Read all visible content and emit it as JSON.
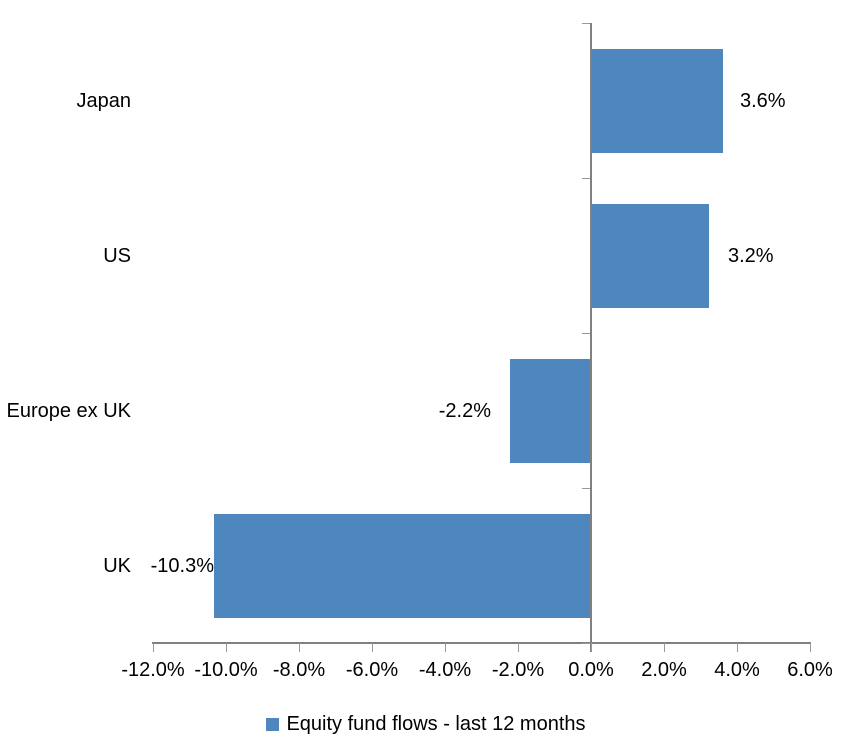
{
  "chart_data": {
    "type": "bar",
    "orientation": "horizontal",
    "title": "",
    "xlabel": "",
    "ylabel": "",
    "categories": [
      "Japan",
      "US",
      "Europe ex UK",
      "UK"
    ],
    "series": [
      {
        "name": "Equity fund flows - last 12 months",
        "values": [
          3.6,
          3.2,
          -2.2,
          -10.3
        ],
        "labels": [
          "3.6%",
          "3.2%",
          "-2.2%",
          "-10.3%"
        ]
      }
    ],
    "xlim": [
      -12,
      6
    ],
    "x_ticks": [
      -12,
      -10,
      -8,
      -6,
      -4,
      -2,
      0,
      2,
      4,
      6
    ],
    "x_tick_labels": [
      "-12.0%",
      "-10.0%",
      "-8.0%",
      "-6.0%",
      "-4.0%",
      "-2.0%",
      "0.0%",
      "2.0%",
      "4.0%",
      "6.0%"
    ],
    "grid": false,
    "legend_position": "bottom",
    "colors": {
      "bar": "#4E86BE",
      "axis": "#808080",
      "tick": "#999999",
      "text": "#000000",
      "background": "#FFFFFF"
    }
  }
}
